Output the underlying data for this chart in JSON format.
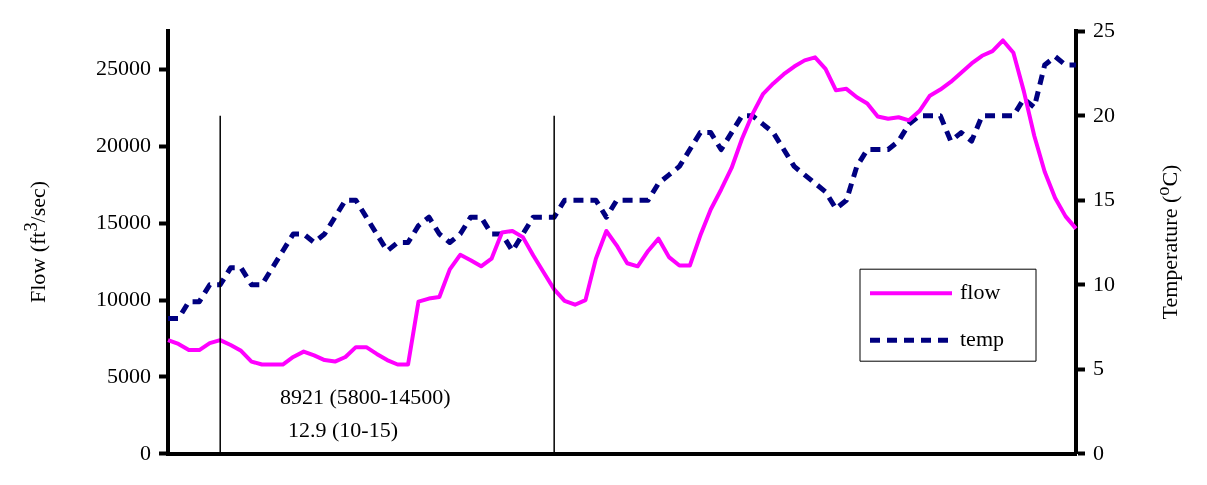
{
  "chart_data": {
    "type": "line",
    "ylabel": "Flow (ft$^{3}$/sec)",
    "y2label": "Temperature ($^{o}$C)",
    "categories": [
      null,
      null,
      null,
      null,
      null,
      null,
      null,
      null,
      null,
      null,
      null,
      null,
      null,
      null,
      null,
      null,
      null,
      null,
      null,
      null,
      null,
      null,
      null,
      null,
      null,
      null,
      null,
      null,
      null,
      null,
      null,
      null,
      null,
      null,
      null,
      null,
      null,
      null,
      null,
      null,
      null,
      null,
      null,
      null,
      null,
      null,
      null,
      null,
      null,
      null,
      null,
      null,
      null,
      null,
      null,
      null,
      null,
      null,
      null,
      null,
      null,
      null,
      null,
      null,
      null,
      null,
      null,
      null,
      null,
      null,
      null,
      null,
      null,
      null,
      null,
      null,
      null,
      null,
      null,
      null,
      null,
      null,
      null,
      null,
      null,
      null,
      null,
      null
    ],
    "series": [
      {
        "name": "flow",
        "color": "#ff00ff",
        "line_style": "solid",
        "values": [
          7400,
          7150,
          6750,
          6750,
          7200,
          7400,
          7080,
          6700,
          6000,
          5810,
          5810,
          5810,
          6300,
          6650,
          6400,
          6100,
          6000,
          6300,
          6940,
          6940,
          6500,
          6100,
          5810,
          5810,
          9900,
          10100,
          10200,
          12000,
          12950,
          12600,
          12200,
          12700,
          14400,
          14500,
          14100,
          12900,
          11800,
          10700,
          9950,
          9700,
          10000,
          12700,
          14500,
          13550,
          12400,
          12200,
          13200,
          14000,
          12800,
          12250,
          12250,
          14200,
          15900,
          17200,
          18600,
          20500,
          22100,
          23400,
          24100,
          24700,
          25200,
          25600,
          25800,
          25050,
          23650,
          23750,
          23200,
          22800,
          21950,
          21800,
          21900,
          21700,
          22300,
          23300,
          23700,
          24200,
          24800,
          25400,
          25900,
          26200,
          26900,
          26100,
          23600,
          20700,
          18350,
          16650,
          15450,
          14650
        ]
      },
      {
        "name": "temp",
        "color": "#000080",
        "line_style": "dashed",
        "axis": "y2",
        "values": [
          8,
          8,
          9,
          9,
          10,
          10,
          11,
          11,
          10,
          10,
          11,
          12,
          13,
          13,
          12.5,
          13,
          14,
          15,
          15,
          14,
          13,
          12,
          12.5,
          12.5,
          13.5,
          14,
          13,
          12.5,
          13,
          14,
          14,
          13,
          13,
          12,
          13,
          14,
          14,
          14,
          15,
          15,
          15,
          15,
          14,
          15,
          15,
          15,
          15,
          16,
          16.5,
          17,
          18,
          19,
          19,
          18,
          19,
          20,
          20,
          19.5,
          19,
          18,
          17,
          16.5,
          16,
          15.5,
          14.5,
          15,
          17,
          18,
          18,
          18,
          18.5,
          19.5,
          20,
          20,
          20,
          18.5,
          19,
          18.5,
          20,
          20,
          20,
          20,
          21,
          20.5,
          23,
          23.5,
          23,
          23
        ]
      }
    ],
    "ylim": [
      0,
      27500
    ],
    "yticks": [
      0,
      5000,
      10000,
      15000,
      20000,
      25000
    ],
    "y2lim": [
      0,
      25
    ],
    "y2ticks": [
      0,
      5,
      10,
      15,
      20,
      25
    ],
    "annotations": [
      "8921 (5800-14500)",
      "12.9 (10-15)"
    ],
    "grid": false,
    "legend": "right",
    "marker": "none"
  }
}
